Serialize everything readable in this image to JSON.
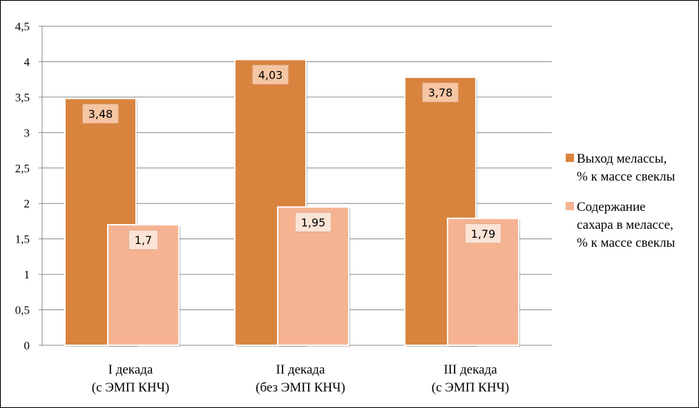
{
  "chart_data": {
    "type": "bar",
    "categories": [
      [
        "I декада",
        "(с ЭМП КНЧ)"
      ],
      [
        "II декада",
        "(без ЭМП КНЧ)"
      ],
      [
        "III декада",
        "(с ЭМП КНЧ)"
      ]
    ],
    "series": [
      {
        "name": [
          "Выход мелассы,",
          "% к массе свеклы"
        ],
        "values": [
          3.48,
          4.03,
          3.78
        ],
        "value_labels": [
          "3,48",
          "4,03",
          "3,78"
        ],
        "color": "#d9843e"
      },
      {
        "name": [
          "Содержание",
          "сахара в мелассе,",
          "% к массе свеклы"
        ],
        "values": [
          1.7,
          1.95,
          1.79
        ],
        "value_labels": [
          "1,7",
          "1,95",
          "1,79"
        ],
        "color": "#f6b391"
      }
    ],
    "ylim": [
      0,
      4.5
    ],
    "yticks": [
      0,
      0.5,
      1,
      1.5,
      2,
      2.5,
      3,
      3.5,
      4,
      4.5
    ],
    "ytick_labels": [
      "0",
      "0,5",
      "1",
      "1,5",
      "2",
      "2,5",
      "3",
      "3,5",
      "4",
      "4,5"
    ],
    "grid": true,
    "legend": "right",
    "title": "",
    "xlabel": "",
    "ylabel": ""
  }
}
